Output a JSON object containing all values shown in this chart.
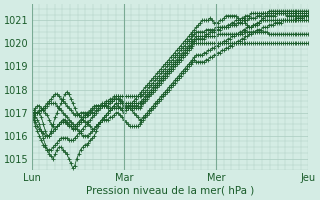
{
  "xlabel": "Pression niveau de la mer( hPa )",
  "bg_color": "#d4ece4",
  "grid_color": "#aaccc0",
  "line_color": "#1a5c2a",
  "marker_color": "#1a5c2a",
  "ylim": [
    1014.5,
    1021.7
  ],
  "yticks": [
    1015,
    1016,
    1017,
    1018,
    1019,
    1020,
    1021
  ],
  "xtick_labels": [
    "Lun",
    "Mar",
    "Mer",
    "Jeu"
  ],
  "xtick_positions": [
    0,
    48,
    96,
    144
  ],
  "series": [
    [
      1017.0,
      1017.0,
      1017.0,
      1017.0,
      1017.0,
      1016.8,
      1016.5,
      1016.2,
      1016.0,
      1016.0,
      1016.2,
      1016.5,
      1016.8,
      1017.0,
      1017.2,
      1017.4,
      1017.6,
      1017.8,
      1017.9,
      1017.8,
      1017.6,
      1017.4,
      1017.2,
      1017.0,
      1016.9,
      1016.8,
      1016.7,
      1016.6,
      1016.6,
      1016.5,
      1016.4,
      1016.3,
      1016.3,
      1016.4,
      1016.5,
      1016.6,
      1016.7,
      1016.8,
      1016.9,
      1017.0,
      1017.1,
      1017.2,
      1017.3,
      1017.4,
      1017.3,
      1017.2,
      1017.1,
      1017.0,
      1017.1,
      1017.2,
      1017.3,
      1017.4,
      1017.5,
      1017.6,
      1017.7,
      1017.8,
      1017.9,
      1018.0,
      1018.1,
      1018.2,
      1018.3,
      1018.4,
      1018.5,
      1018.6,
      1018.7,
      1018.8,
      1018.9,
      1019.0,
      1019.1,
      1019.2,
      1019.3,
      1019.4,
      1019.5,
      1019.6,
      1019.7,
      1019.8,
      1019.9,
      1020.0,
      1020.1,
      1020.2,
      1020.3,
      1020.4,
      1020.5,
      1020.6,
      1020.7,
      1020.8,
      1020.9,
      1021.0,
      1021.0,
      1021.0,
      1021.0,
      1021.1,
      1021.0,
      1020.9,
      1020.9,
      1020.9,
      1021.0,
      1021.0,
      1021.1,
      1021.2,
      1021.2,
      1021.2,
      1021.2,
      1021.2,
      1021.2,
      1021.1,
      1021.0,
      1021.0,
      1021.0,
      1020.9,
      1020.8,
      1020.7,
      1020.7,
      1020.8,
      1020.8,
      1020.8,
      1020.9,
      1021.0,
      1021.1,
      1021.2,
      1021.2,
      1021.2,
      1021.2,
      1021.2,
      1021.2,
      1021.3,
      1021.3,
      1021.3,
      1021.3,
      1021.3,
      1021.2,
      1021.2,
      1021.2,
      1021.2,
      1021.2,
      1021.2,
      1021.2,
      1021.2,
      1021.2,
      1021.2,
      1021.2,
      1021.2
    ],
    [
      1017.0,
      1016.9,
      1016.8,
      1016.7,
      1016.5,
      1016.2,
      1015.9,
      1015.6,
      1015.4,
      1015.2,
      1015.1,
      1015.0,
      1015.2,
      1015.4,
      1015.5,
      1015.5,
      1015.4,
      1015.3,
      1015.2,
      1015.0,
      1014.8,
      1014.6,
      1014.7,
      1015.0,
      1015.2,
      1015.4,
      1015.5,
      1015.6,
      1015.6,
      1015.7,
      1015.8,
      1015.9,
      1016.0,
      1016.2,
      1016.4,
      1016.6,
      1016.7,
      1016.8,
      1016.9,
      1017.0,
      1017.1,
      1017.2,
      1017.3,
      1017.4,
      1017.4,
      1017.4,
      1017.4,
      1017.4,
      1017.4,
      1017.4,
      1017.4,
      1017.4,
      1017.4,
      1017.4,
      1017.4,
      1017.4,
      1017.4,
      1017.5,
      1017.6,
      1017.7,
      1017.8,
      1017.9,
      1018.0,
      1018.1,
      1018.2,
      1018.3,
      1018.4,
      1018.5,
      1018.6,
      1018.7,
      1018.8,
      1018.9,
      1019.0,
      1019.1,
      1019.2,
      1019.3,
      1019.4,
      1019.5,
      1019.6,
      1019.7,
      1019.8,
      1019.9,
      1020.0,
      1020.1,
      1020.2,
      1020.2,
      1020.2,
      1020.2,
      1020.2,
      1020.3,
      1020.3,
      1020.3,
      1020.3,
      1020.3,
      1020.3,
      1020.4,
      1020.4,
      1020.4,
      1020.4,
      1020.4,
      1020.4,
      1020.4,
      1020.4,
      1020.4,
      1020.4,
      1020.4,
      1020.4,
      1020.4,
      1020.5,
      1020.5,
      1020.5,
      1020.5,
      1020.5,
      1020.5,
      1020.5,
      1020.5,
      1020.5,
      1020.5,
      1020.5,
      1020.5,
      1020.5,
      1020.4,
      1020.4,
      1020.4,
      1020.4,
      1020.4,
      1020.4,
      1020.4,
      1020.4,
      1020.4,
      1020.4,
      1020.4,
      1020.4,
      1020.4,
      1020.4,
      1020.4,
      1020.4,
      1020.4,
      1020.4,
      1020.4,
      1020.4,
      1020.4
    ],
    [
      1017.0,
      1017.1,
      1017.2,
      1017.3,
      1017.3,
      1017.2,
      1017.1,
      1017.0,
      1016.9,
      1016.7,
      1016.5,
      1016.4,
      1016.3,
      1016.4,
      1016.5,
      1016.6,
      1016.7,
      1016.7,
      1016.6,
      1016.5,
      1016.4,
      1016.3,
      1016.3,
      1016.4,
      1016.5,
      1016.6,
      1016.7,
      1016.8,
      1016.9,
      1017.0,
      1017.1,
      1017.2,
      1017.3,
      1017.3,
      1017.3,
      1017.3,
      1017.3,
      1017.3,
      1017.3,
      1017.3,
      1017.4,
      1017.5,
      1017.6,
      1017.7,
      1017.7,
      1017.7,
      1017.7,
      1017.7,
      1017.7,
      1017.7,
      1017.7,
      1017.7,
      1017.7,
      1017.7,
      1017.7,
      1017.7,
      1017.7,
      1017.8,
      1017.9,
      1018.0,
      1018.1,
      1018.2,
      1018.3,
      1018.4,
      1018.5,
      1018.6,
      1018.7,
      1018.8,
      1018.9,
      1019.0,
      1019.1,
      1019.2,
      1019.3,
      1019.4,
      1019.5,
      1019.6,
      1019.7,
      1019.8,
      1019.9,
      1020.0,
      1020.1,
      1020.2,
      1020.3,
      1020.4,
      1020.5,
      1020.5,
      1020.5,
      1020.5,
      1020.5,
      1020.6,
      1020.6,
      1020.6,
      1020.6,
      1020.6,
      1020.7,
      1020.7,
      1020.7,
      1020.7,
      1020.7,
      1020.7,
      1020.7,
      1020.8,
      1020.8,
      1020.8,
      1020.8,
      1020.9,
      1020.9,
      1020.9,
      1021.0,
      1021.0,
      1021.0,
      1021.1,
      1021.1,
      1021.1,
      1021.1,
      1021.2,
      1021.2,
      1021.2,
      1021.3,
      1021.3,
      1021.3,
      1021.4,
      1021.4,
      1021.4,
      1021.4,
      1021.4,
      1021.4,
      1021.4,
      1021.4,
      1021.4,
      1021.4,
      1021.4,
      1021.4,
      1021.4,
      1021.4,
      1021.4,
      1021.4,
      1021.4,
      1021.4,
      1021.4,
      1021.4,
      1021.4
    ],
    [
      1017.0,
      1016.8,
      1016.6,
      1016.4,
      1016.3,
      1016.2,
      1016.1,
      1016.0,
      1016.0,
      1016.0,
      1016.1,
      1016.2,
      1016.3,
      1016.4,
      1016.5,
      1016.6,
      1016.6,
      1016.6,
      1016.5,
      1016.4,
      1016.4,
      1016.3,
      1016.4,
      1016.5,
      1016.6,
      1016.7,
      1016.8,
      1016.9,
      1016.9,
      1016.9,
      1017.0,
      1017.1,
      1017.2,
      1017.3,
      1017.3,
      1017.3,
      1017.3,
      1017.3,
      1017.3,
      1017.2,
      1017.2,
      1017.2,
      1017.2,
      1017.2,
      1017.2,
      1017.2,
      1017.2,
      1017.2,
      1017.2,
      1017.2,
      1017.2,
      1017.2,
      1017.2,
      1017.2,
      1017.2,
      1017.2,
      1017.3,
      1017.4,
      1017.5,
      1017.6,
      1017.7,
      1017.8,
      1017.9,
      1018.0,
      1018.1,
      1018.2,
      1018.3,
      1018.4,
      1018.5,
      1018.6,
      1018.7,
      1018.8,
      1018.9,
      1019.0,
      1019.1,
      1019.2,
      1019.3,
      1019.4,
      1019.5,
      1019.6,
      1019.7,
      1019.8,
      1019.9,
      1020.0,
      1020.0,
      1020.0,
      1020.0,
      1020.0,
      1020.0,
      1020.0,
      1020.0,
      1020.0,
      1020.0,
      1020.0,
      1020.0,
      1020.0,
      1020.0,
      1020.0,
      1020.0,
      1020.0,
      1020.0,
      1020.0,
      1020.0,
      1020.0,
      1020.0,
      1020.0,
      1020.0,
      1020.0,
      1020.0,
      1020.0,
      1020.0,
      1020.0,
      1020.0,
      1020.0,
      1020.0,
      1020.0,
      1020.0,
      1020.0,
      1020.0,
      1020.0,
      1020.0,
      1020.0,
      1020.0,
      1020.0,
      1020.0,
      1020.0,
      1020.0,
      1020.0,
      1020.0,
      1020.0,
      1020.0,
      1020.0,
      1020.0,
      1020.0,
      1020.0,
      1020.0,
      1020.0,
      1020.0,
      1020.0,
      1020.0,
      1020.0,
      1020.0
    ],
    [
      1017.0,
      1017.0,
      1017.0,
      1017.0,
      1017.1,
      1017.1,
      1017.2,
      1017.3,
      1017.4,
      1017.5,
      1017.6,
      1017.7,
      1017.8,
      1017.8,
      1017.7,
      1017.6,
      1017.5,
      1017.4,
      1017.3,
      1017.2,
      1017.1,
      1017.0,
      1016.9,
      1016.9,
      1016.9,
      1017.0,
      1017.0,
      1017.0,
      1017.0,
      1017.0,
      1017.0,
      1017.0,
      1017.0,
      1017.1,
      1017.2,
      1017.3,
      1017.4,
      1017.4,
      1017.5,
      1017.5,
      1017.6,
      1017.6,
      1017.7,
      1017.7,
      1017.7,
      1017.6,
      1017.5,
      1017.4,
      1017.3,
      1017.3,
      1017.3,
      1017.3,
      1017.3,
      1017.3,
      1017.3,
      1017.4,
      1017.5,
      1017.6,
      1017.7,
      1017.8,
      1017.9,
      1018.0,
      1018.1,
      1018.2,
      1018.3,
      1018.4,
      1018.5,
      1018.6,
      1018.7,
      1018.8,
      1018.9,
      1019.0,
      1019.1,
      1019.2,
      1019.3,
      1019.4,
      1019.5,
      1019.6,
      1019.7,
      1019.8,
      1019.9,
      1020.0,
      1020.1,
      1020.2,
      1020.3,
      1020.3,
      1020.3,
      1020.3,
      1020.3,
      1020.4,
      1020.4,
      1020.5,
      1020.5,
      1020.5,
      1020.6,
      1020.6,
      1020.6,
      1020.7,
      1020.7,
      1020.7,
      1020.8,
      1020.8,
      1020.9,
      1020.9,
      1021.0,
      1021.0,
      1021.0,
      1021.1,
      1021.1,
      1021.2,
      1021.2,
      1021.2,
      1021.3,
      1021.3,
      1021.3,
      1021.3,
      1021.3,
      1021.3,
      1021.3,
      1021.3,
      1021.3,
      1021.3,
      1021.3,
      1021.3,
      1021.3,
      1021.3,
      1021.3,
      1021.3,
      1021.3,
      1021.3,
      1021.3,
      1021.3,
      1021.3,
      1021.3,
      1021.3,
      1021.3,
      1021.3,
      1021.3,
      1021.3,
      1021.3,
      1021.3,
      1021.3
    ],
    [
      1017.0,
      1016.7,
      1016.4,
      1016.2,
      1016.0,
      1015.8,
      1015.6,
      1015.5,
      1015.4,
      1015.4,
      1015.4,
      1015.5,
      1015.6,
      1015.7,
      1015.8,
      1015.9,
      1015.9,
      1015.9,
      1015.9,
      1015.8,
      1015.8,
      1015.8,
      1015.9,
      1016.0,
      1016.1,
      1016.2,
      1016.3,
      1016.4,
      1016.5,
      1016.6,
      1016.7,
      1016.8,
      1016.9,
      1017.0,
      1017.1,
      1017.2,
      1017.3,
      1017.3,
      1017.4,
      1017.4,
      1017.5,
      1017.5,
      1017.6,
      1017.6,
      1017.6,
      1017.5,
      1017.4,
      1017.3,
      1017.2,
      1017.2,
      1017.2,
      1017.1,
      1017.0,
      1016.9,
      1016.8,
      1016.7,
      1016.7,
      1016.8,
      1016.9,
      1017.0,
      1017.1,
      1017.2,
      1017.3,
      1017.4,
      1017.5,
      1017.6,
      1017.7,
      1017.8,
      1017.9,
      1018.0,
      1018.1,
      1018.2,
      1018.3,
      1018.4,
      1018.5,
      1018.6,
      1018.7,
      1018.8,
      1018.9,
      1019.0,
      1019.1,
      1019.2,
      1019.3,
      1019.4,
      1019.5,
      1019.5,
      1019.5,
      1019.5,
      1019.6,
      1019.6,
      1019.7,
      1019.7,
      1019.8,
      1019.8,
      1019.9,
      1019.9,
      1020.0,
      1020.0,
      1020.1,
      1020.1,
      1020.2,
      1020.2,
      1020.3,
      1020.3,
      1020.4,
      1020.4,
      1020.5,
      1020.5,
      1020.6,
      1020.6,
      1020.7,
      1020.7,
      1020.7,
      1020.8,
      1020.8,
      1020.9,
      1020.9,
      1021.0,
      1021.0,
      1021.0,
      1021.0,
      1021.0,
      1021.0,
      1021.0,
      1021.0,
      1021.0,
      1021.0,
      1021.0,
      1021.0,
      1021.0,
      1021.0,
      1021.0,
      1021.0,
      1021.0,
      1021.0,
      1021.0,
      1021.0,
      1021.0,
      1021.0,
      1021.0,
      1021.0,
      1021.0
    ],
    [
      1017.0,
      1017.0,
      1017.0,
      1017.0,
      1017.0,
      1017.1,
      1017.1,
      1017.2,
      1017.3,
      1017.4,
      1017.4,
      1017.4,
      1017.4,
      1017.3,
      1017.2,
      1017.1,
      1017.0,
      1016.9,
      1016.8,
      1016.7,
      1016.6,
      1016.5,
      1016.4,
      1016.3,
      1016.2,
      1016.1,
      1016.0,
      1016.0,
      1016.0,
      1016.0,
      1016.1,
      1016.2,
      1016.3,
      1016.4,
      1016.5,
      1016.6,
      1016.7,
      1016.7,
      1016.7,
      1016.7,
      1016.8,
      1016.8,
      1016.9,
      1017.0,
      1017.0,
      1016.9,
      1016.8,
      1016.7,
      1016.6,
      1016.5,
      1016.4,
      1016.4,
      1016.4,
      1016.4,
      1016.4,
      1016.5,
      1016.6,
      1016.7,
      1016.8,
      1016.9,
      1017.0,
      1017.1,
      1017.2,
      1017.3,
      1017.4,
      1017.5,
      1017.6,
      1017.7,
      1017.8,
      1017.9,
      1018.0,
      1018.1,
      1018.2,
      1018.3,
      1018.4,
      1018.5,
      1018.6,
      1018.7,
      1018.8,
      1018.9,
      1019.0,
      1019.1,
      1019.2,
      1019.3,
      1019.2,
      1019.2,
      1019.2,
      1019.2,
      1019.2,
      1019.3,
      1019.3,
      1019.4,
      1019.4,
      1019.5,
      1019.5,
      1019.6,
      1019.6,
      1019.7,
      1019.7,
      1019.8,
      1019.8,
      1019.9,
      1019.9,
      1020.0,
      1020.0,
      1020.1,
      1020.1,
      1020.2,
      1020.2,
      1020.3,
      1020.3,
      1020.4,
      1020.4,
      1020.5,
      1020.5,
      1020.6,
      1020.6,
      1020.6,
      1020.7,
      1020.7,
      1020.7,
      1020.8,
      1020.8,
      1020.8,
      1020.9,
      1020.9,
      1020.9,
      1020.9,
      1021.0,
      1021.0,
      1021.0,
      1021.0,
      1021.0,
      1021.0,
      1021.0,
      1021.1,
      1021.1,
      1021.1,
      1021.1,
      1021.2,
      1021.2,
      1021.2
    ]
  ]
}
